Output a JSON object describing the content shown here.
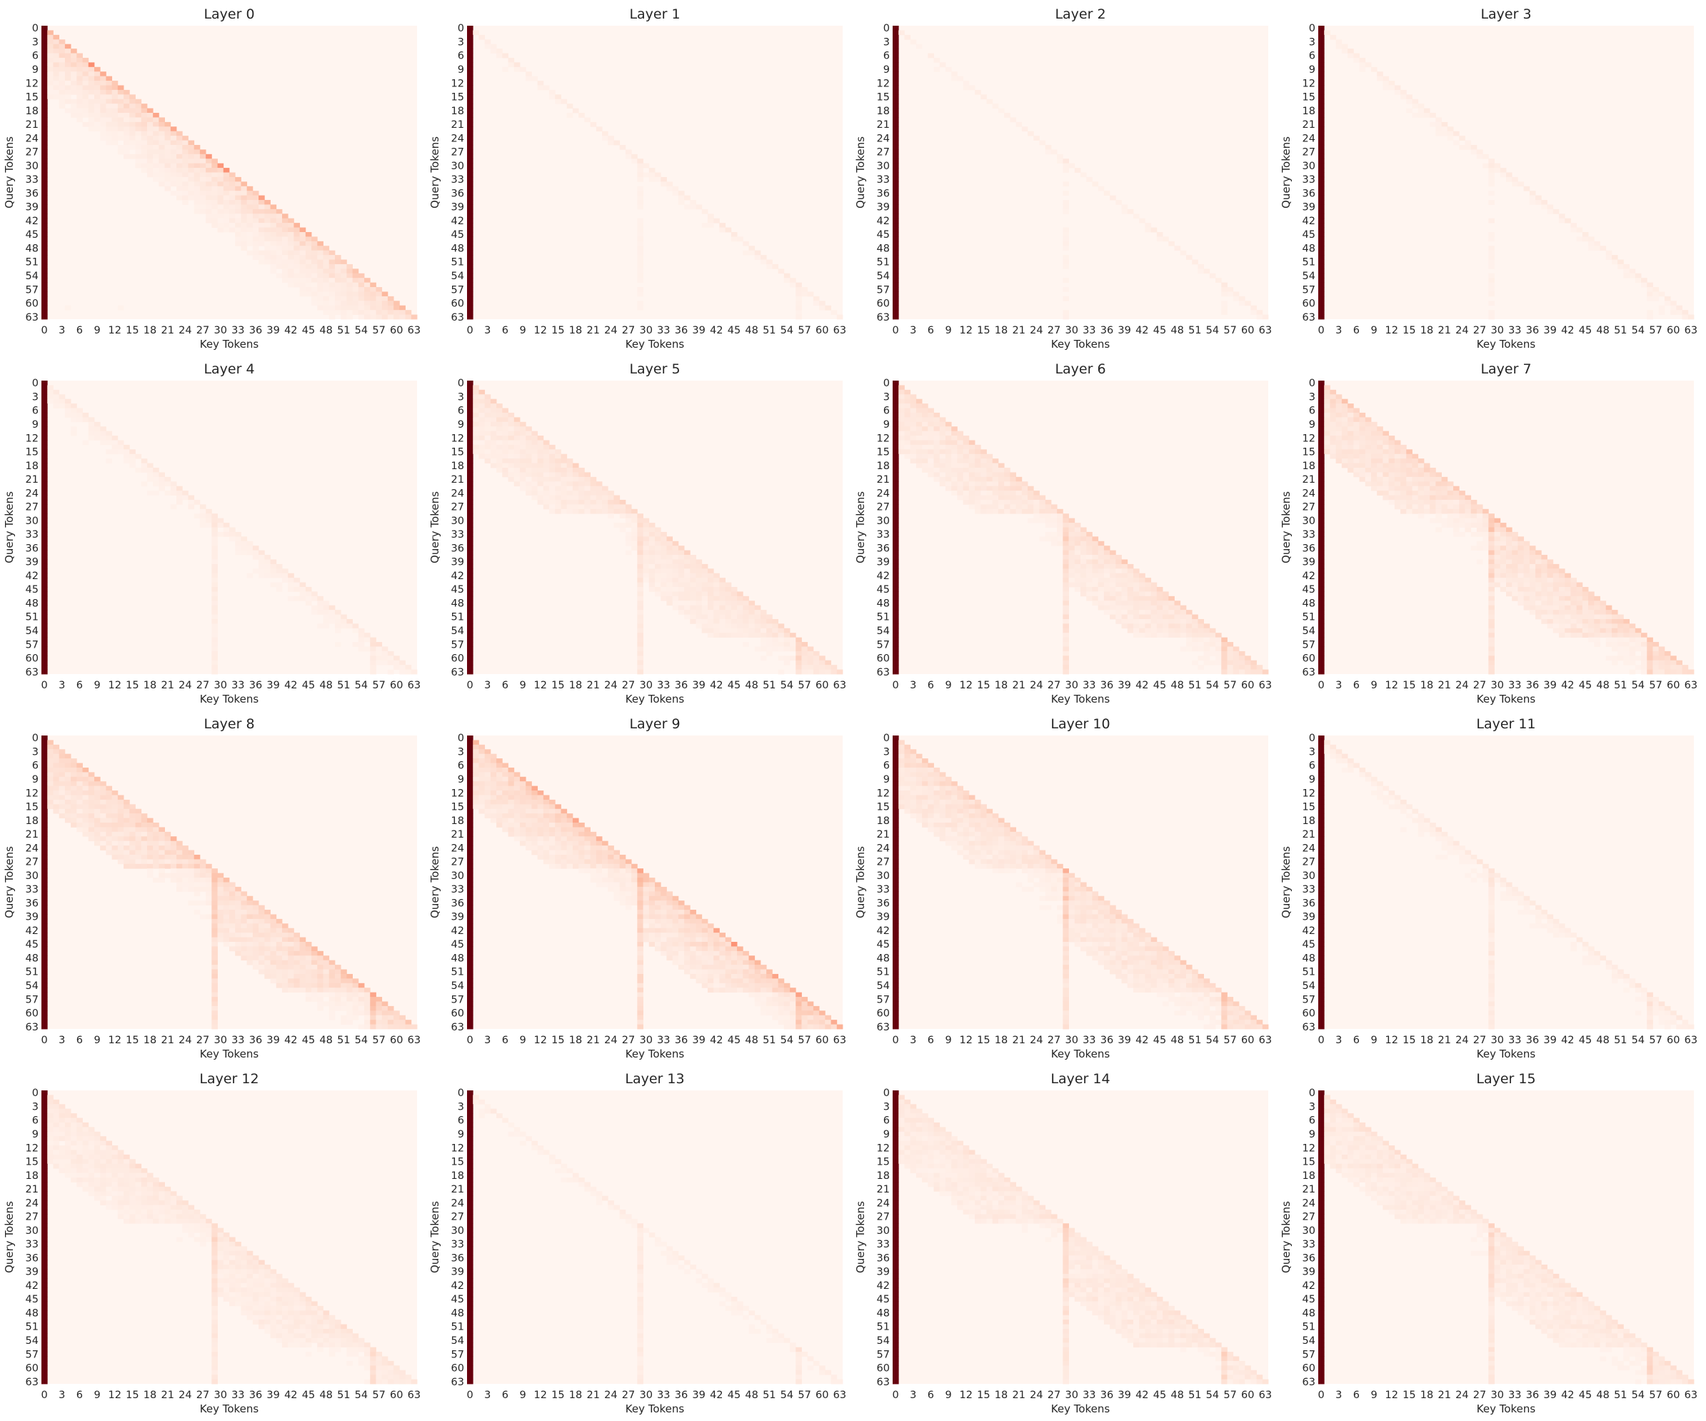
{
  "figure": {
    "grid": "4x4",
    "colormap": "Reds",
    "colors": {
      "low": "#fff5f0",
      "mid_low": "#fcbba1",
      "mid": "#fb6a4a",
      "mid_high": "#cb181d",
      "high": "#67000d"
    }
  },
  "chart_data": [
    {
      "type": "heatmap",
      "title": "Layer 0",
      "xlabel": "Key Tokens",
      "ylabel": "Query Tokens",
      "n_tokens": 64,
      "tick_step": 3,
      "xticks": [
        0,
        3,
        6,
        9,
        12,
        15,
        18,
        21,
        24,
        27,
        30,
        33,
        36,
        39,
        42,
        45,
        48,
        51,
        54,
        57,
        60,
        63
      ],
      "yticks": [
        0,
        3,
        6,
        9,
        12,
        15,
        18,
        21,
        24,
        27,
        30,
        33,
        36,
        39,
        42,
        45,
        48,
        51,
        54,
        57,
        60,
        63
      ],
      "mask": "causal",
      "attention_sink": {
        "key": 0,
        "weight": 0.55
      },
      "diagonal_weight": 0.22,
      "local_window": 14,
      "segment_starts": [],
      "segment_strength": 0,
      "blocks": [],
      "vmin": 0,
      "vmax": 1
    },
    {
      "type": "heatmap",
      "title": "Layer 1",
      "xlabel": "Key Tokens",
      "ylabel": "Query Tokens",
      "n_tokens": 64,
      "tick_step": 3,
      "xticks": [
        0,
        3,
        6,
        9,
        12,
        15,
        18,
        21,
        24,
        27,
        30,
        33,
        36,
        39,
        42,
        45,
        48,
        51,
        54,
        57,
        60,
        63
      ],
      "yticks": [
        0,
        3,
        6,
        9,
        12,
        15,
        18,
        21,
        24,
        27,
        30,
        33,
        36,
        39,
        42,
        45,
        48,
        51,
        54,
        57,
        60,
        63
      ],
      "mask": "causal",
      "attention_sink": {
        "key": 0,
        "weight": 0.85
      },
      "diagonal_weight": 0.05,
      "local_window": 5,
      "segment_starts": [
        29,
        56
      ],
      "segment_strength": 0.02,
      "blocks": [],
      "vmin": 0,
      "vmax": 1
    },
    {
      "type": "heatmap",
      "title": "Layer 2",
      "xlabel": "Key Tokens",
      "ylabel": "Query Tokens",
      "n_tokens": 64,
      "tick_step": 3,
      "xticks": [
        0,
        3,
        6,
        9,
        12,
        15,
        18,
        21,
        24,
        27,
        30,
        33,
        36,
        39,
        42,
        45,
        48,
        51,
        54,
        57,
        60,
        63
      ],
      "yticks": [
        0,
        3,
        6,
        9,
        12,
        15,
        18,
        21,
        24,
        27,
        30,
        33,
        36,
        39,
        42,
        45,
        48,
        51,
        54,
        57,
        60,
        63
      ],
      "mask": "causal",
      "attention_sink": {
        "key": 0,
        "weight": 0.87
      },
      "diagonal_weight": 0.04,
      "local_window": 5,
      "segment_starts": [
        29,
        56
      ],
      "segment_strength": 0.02,
      "blocks": [],
      "vmin": 0,
      "vmax": 1
    },
    {
      "type": "heatmap",
      "title": "Layer 3",
      "xlabel": "Key Tokens",
      "ylabel": "Query Tokens",
      "n_tokens": 64,
      "tick_step": 3,
      "xticks": [
        0,
        3,
        6,
        9,
        12,
        15,
        18,
        21,
        24,
        27,
        30,
        33,
        36,
        39,
        42,
        45,
        48,
        51,
        54,
        57,
        60,
        63
      ],
      "yticks": [
        0,
        3,
        6,
        9,
        12,
        15,
        18,
        21,
        24,
        27,
        30,
        33,
        36,
        39,
        42,
        45,
        48,
        51,
        54,
        57,
        60,
        63
      ],
      "mask": "causal",
      "attention_sink": {
        "key": 0,
        "weight": 0.84
      },
      "diagonal_weight": 0.05,
      "local_window": 6,
      "segment_starts": [
        29,
        56
      ],
      "segment_strength": 0.02,
      "blocks": [],
      "vmin": 0,
      "vmax": 1
    },
    {
      "type": "heatmap",
      "title": "Layer 4",
      "xlabel": "Key Tokens",
      "ylabel": "Query Tokens",
      "n_tokens": 64,
      "tick_step": 3,
      "xticks": [
        0,
        3,
        6,
        9,
        12,
        15,
        18,
        21,
        24,
        27,
        30,
        33,
        36,
        39,
        42,
        45,
        48,
        51,
        54,
        57,
        60,
        63
      ],
      "yticks": [
        0,
        3,
        6,
        9,
        12,
        15,
        18,
        21,
        24,
        27,
        30,
        33,
        36,
        39,
        42,
        45,
        48,
        51,
        54,
        57,
        60,
        63
      ],
      "mask": "causal",
      "attention_sink": {
        "key": 0,
        "weight": 0.8
      },
      "diagonal_weight": 0.07,
      "local_window": 8,
      "segment_starts": [
        29,
        56
      ],
      "segment_strength": 0.04,
      "blocks": [],
      "vmin": 0,
      "vmax": 1
    },
    {
      "type": "heatmap",
      "title": "Layer 5",
      "xlabel": "Key Tokens",
      "ylabel": "Query Tokens",
      "n_tokens": 64,
      "tick_step": 3,
      "xticks": [
        0,
        3,
        6,
        9,
        12,
        15,
        18,
        21,
        24,
        27,
        30,
        33,
        36,
        39,
        42,
        45,
        48,
        51,
        54,
        57,
        60,
        63
      ],
      "yticks": [
        0,
        3,
        6,
        9,
        12,
        15,
        18,
        21,
        24,
        27,
        30,
        33,
        36,
        39,
        42,
        45,
        48,
        51,
        54,
        57,
        60,
        63
      ],
      "mask": "causal",
      "attention_sink": {
        "key": 0,
        "weight": 0.7
      },
      "diagonal_weight": 0.1,
      "local_window": 10,
      "segment_starts": [
        29,
        56
      ],
      "segment_strength": 0.06,
      "blocks": [
        {
          "start": 0,
          "end": 29,
          "strength": 0.08
        },
        {
          "start": 29,
          "end": 56,
          "strength": 0.08
        },
        {
          "start": 56,
          "end": 64,
          "strength": 0.08
        }
      ],
      "vmin": 0,
      "vmax": 1
    },
    {
      "type": "heatmap",
      "title": "Layer 6",
      "xlabel": "Key Tokens",
      "ylabel": "Query Tokens",
      "n_tokens": 64,
      "tick_step": 3,
      "xticks": [
        0,
        3,
        6,
        9,
        12,
        15,
        18,
        21,
        24,
        27,
        30,
        33,
        36,
        39,
        42,
        45,
        48,
        51,
        54,
        57,
        60,
        63
      ],
      "yticks": [
        0,
        3,
        6,
        9,
        12,
        15,
        18,
        21,
        24,
        27,
        30,
        33,
        36,
        39,
        42,
        45,
        48,
        51,
        54,
        57,
        60,
        63
      ],
      "mask": "causal",
      "attention_sink": {
        "key": 0,
        "weight": 0.68
      },
      "diagonal_weight": 0.1,
      "local_window": 10,
      "segment_starts": [
        29,
        56
      ],
      "segment_strength": 0.07,
      "blocks": [
        {
          "start": 0,
          "end": 29,
          "strength": 0.09
        },
        {
          "start": 29,
          "end": 56,
          "strength": 0.09
        },
        {
          "start": 56,
          "end": 64,
          "strength": 0.09
        }
      ],
      "vmin": 0,
      "vmax": 1
    },
    {
      "type": "heatmap",
      "title": "Layer 7",
      "xlabel": "Key Tokens",
      "ylabel": "Query Tokens",
      "n_tokens": 64,
      "tick_step": 3,
      "xticks": [
        0,
        3,
        6,
        9,
        12,
        15,
        18,
        21,
        24,
        27,
        30,
        33,
        36,
        39,
        42,
        45,
        48,
        51,
        54,
        57,
        60,
        63
      ],
      "yticks": [
        0,
        3,
        6,
        9,
        12,
        15,
        18,
        21,
        24,
        27,
        30,
        33,
        36,
        39,
        42,
        45,
        48,
        51,
        54,
        57,
        60,
        63
      ],
      "mask": "causal",
      "attention_sink": {
        "key": 0,
        "weight": 0.6
      },
      "diagonal_weight": 0.1,
      "local_window": 12,
      "segment_starts": [
        29,
        56
      ],
      "segment_strength": 0.07,
      "blocks": [
        {
          "start": 0,
          "end": 29,
          "strength": 0.1
        },
        {
          "start": 29,
          "end": 56,
          "strength": 0.1
        },
        {
          "start": 56,
          "end": 64,
          "strength": 0.1
        }
      ],
      "vmin": 0,
      "vmax": 1
    },
    {
      "type": "heatmap",
      "title": "Layer 8",
      "xlabel": "Key Tokens",
      "ylabel": "Query Tokens",
      "n_tokens": 64,
      "tick_step": 3,
      "xticks": [
        0,
        3,
        6,
        9,
        12,
        15,
        18,
        21,
        24,
        27,
        30,
        33,
        36,
        39,
        42,
        45,
        48,
        51,
        54,
        57,
        60,
        63
      ],
      "yticks": [
        0,
        3,
        6,
        9,
        12,
        15,
        18,
        21,
        24,
        27,
        30,
        33,
        36,
        39,
        42,
        45,
        48,
        51,
        54,
        57,
        60,
        63
      ],
      "mask": "causal",
      "attention_sink": {
        "key": 0,
        "weight": 0.62
      },
      "diagonal_weight": 0.14,
      "local_window": 12,
      "segment_starts": [
        29,
        56
      ],
      "segment_strength": 0.1,
      "blocks": [
        {
          "start": 0,
          "end": 29,
          "strength": 0.12
        },
        {
          "start": 29,
          "end": 56,
          "strength": 0.12
        },
        {
          "start": 56,
          "end": 64,
          "strength": 0.12
        }
      ],
      "vmin": 0,
      "vmax": 1
    },
    {
      "type": "heatmap",
      "title": "Layer 9",
      "xlabel": "Key Tokens",
      "ylabel": "Query Tokens",
      "n_tokens": 64,
      "tick_step": 3,
      "xticks": [
        0,
        3,
        6,
        9,
        12,
        15,
        18,
        21,
        24,
        27,
        30,
        33,
        36,
        39,
        42,
        45,
        48,
        51,
        54,
        57,
        60,
        63
      ],
      "yticks": [
        0,
        3,
        6,
        9,
        12,
        15,
        18,
        21,
        24,
        27,
        30,
        33,
        36,
        39,
        42,
        45,
        48,
        51,
        54,
        57,
        60,
        63
      ],
      "mask": "causal",
      "attention_sink": {
        "key": 0,
        "weight": 0.6
      },
      "diagonal_weight": 0.2,
      "local_window": 10,
      "segment_starts": [
        29,
        56
      ],
      "segment_strength": 0.1,
      "blocks": [
        {
          "start": 0,
          "end": 29,
          "strength": 0.1
        },
        {
          "start": 29,
          "end": 56,
          "strength": 0.1
        },
        {
          "start": 56,
          "end": 64,
          "strength": 0.1
        }
      ],
      "vmin": 0,
      "vmax": 1
    },
    {
      "type": "heatmap",
      "title": "Layer 10",
      "xlabel": "Key Tokens",
      "ylabel": "Query Tokens",
      "n_tokens": 64,
      "tick_step": 3,
      "xticks": [
        0,
        3,
        6,
        9,
        12,
        15,
        18,
        21,
        24,
        27,
        30,
        33,
        36,
        39,
        42,
        45,
        48,
        51,
        54,
        57,
        60,
        63
      ],
      "yticks": [
        0,
        3,
        6,
        9,
        12,
        15,
        18,
        21,
        24,
        27,
        30,
        33,
        36,
        39,
        42,
        45,
        48,
        51,
        54,
        57,
        60,
        63
      ],
      "mask": "causal",
      "attention_sink": {
        "key": 0,
        "weight": 0.66
      },
      "diagonal_weight": 0.11,
      "local_window": 12,
      "segment_starts": [
        29,
        56
      ],
      "segment_strength": 0.09,
      "blocks": [
        {
          "start": 0,
          "end": 29,
          "strength": 0.09
        },
        {
          "start": 29,
          "end": 56,
          "strength": 0.09
        },
        {
          "start": 56,
          "end": 64,
          "strength": 0.09
        }
      ],
      "vmin": 0,
      "vmax": 1
    },
    {
      "type": "heatmap",
      "title": "Layer 11",
      "xlabel": "Key Tokens",
      "ylabel": "Query Tokens",
      "n_tokens": 64,
      "tick_step": 3,
      "xticks": [
        0,
        3,
        6,
        9,
        12,
        15,
        18,
        21,
        24,
        27,
        30,
        33,
        36,
        39,
        42,
        45,
        48,
        51,
        54,
        57,
        60,
        63
      ],
      "yticks": [
        0,
        3,
        6,
        9,
        12,
        15,
        18,
        21,
        24,
        27,
        30,
        33,
        36,
        39,
        42,
        45,
        48,
        51,
        54,
        57,
        60,
        63
      ],
      "mask": "causal",
      "attention_sink": {
        "key": 0,
        "weight": 0.78
      },
      "diagonal_weight": 0.06,
      "local_window": 8,
      "segment_starts": [
        29,
        56
      ],
      "segment_strength": 0.05,
      "blocks": [],
      "vmin": 0,
      "vmax": 1
    },
    {
      "type": "heatmap",
      "title": "Layer 12",
      "xlabel": "Key Tokens",
      "ylabel": "Query Tokens",
      "n_tokens": 64,
      "tick_step": 3,
      "xticks": [
        0,
        3,
        6,
        9,
        12,
        15,
        18,
        21,
        24,
        27,
        30,
        33,
        36,
        39,
        42,
        45,
        48,
        51,
        54,
        57,
        60,
        63
      ],
      "yticks": [
        0,
        3,
        6,
        9,
        12,
        15,
        18,
        21,
        24,
        27,
        30,
        33,
        36,
        39,
        42,
        45,
        48,
        51,
        54,
        57,
        60,
        63
      ],
      "mask": "causal",
      "attention_sink": {
        "key": 0,
        "weight": 0.72
      },
      "diagonal_weight": 0.06,
      "local_window": 12,
      "segment_starts": [
        29,
        56
      ],
      "segment_strength": 0.07,
      "blocks": [
        {
          "start": 0,
          "end": 29,
          "strength": 0.07
        },
        {
          "start": 29,
          "end": 56,
          "strength": 0.07
        },
        {
          "start": 56,
          "end": 64,
          "strength": 0.07
        }
      ],
      "vmin": 0,
      "vmax": 1
    },
    {
      "type": "heatmap",
      "title": "Layer 13",
      "xlabel": "Key Tokens",
      "ylabel": "Query Tokens",
      "n_tokens": 64,
      "tick_step": 3,
      "xticks": [
        0,
        3,
        6,
        9,
        12,
        15,
        18,
        21,
        24,
        27,
        30,
        33,
        36,
        39,
        42,
        45,
        48,
        51,
        54,
        57,
        60,
        63
      ],
      "yticks": [
        0,
        3,
        6,
        9,
        12,
        15,
        18,
        21,
        24,
        27,
        30,
        33,
        36,
        39,
        42,
        45,
        48,
        51,
        54,
        57,
        60,
        63
      ],
      "mask": "causal",
      "attention_sink": {
        "key": 0,
        "weight": 0.84
      },
      "diagonal_weight": 0.04,
      "local_window": 8,
      "segment_starts": [
        29,
        56
      ],
      "segment_strength": 0.05,
      "blocks": [],
      "vmin": 0,
      "vmax": 1
    },
    {
      "type": "heatmap",
      "title": "Layer 14",
      "xlabel": "Key Tokens",
      "ylabel": "Query Tokens",
      "n_tokens": 64,
      "tick_step": 3,
      "xticks": [
        0,
        3,
        6,
        9,
        12,
        15,
        18,
        21,
        24,
        27,
        30,
        33,
        36,
        39,
        42,
        45,
        48,
        51,
        54,
        57,
        60,
        63
      ],
      "yticks": [
        0,
        3,
        6,
        9,
        12,
        15,
        18,
        21,
        24,
        27,
        30,
        33,
        36,
        39,
        42,
        45,
        48,
        51,
        54,
        57,
        60,
        63
      ],
      "mask": "causal",
      "attention_sink": {
        "key": 0,
        "weight": 0.76
      },
      "diagonal_weight": 0.05,
      "local_window": 12,
      "segment_starts": [
        29,
        56
      ],
      "segment_strength": 0.08,
      "blocks": [
        {
          "start": 0,
          "end": 29,
          "strength": 0.09
        },
        {
          "start": 29,
          "end": 56,
          "strength": 0.09
        },
        {
          "start": 56,
          "end": 64,
          "strength": 0.09
        }
      ],
      "vmin": 0,
      "vmax": 1
    },
    {
      "type": "heatmap",
      "title": "Layer 15",
      "xlabel": "Key Tokens",
      "ylabel": "Query Tokens",
      "n_tokens": 64,
      "tick_step": 3,
      "xticks": [
        0,
        3,
        6,
        9,
        12,
        15,
        18,
        21,
        24,
        27,
        30,
        33,
        36,
        39,
        42,
        45,
        48,
        51,
        54,
        57,
        60,
        63
      ],
      "yticks": [
        0,
        3,
        6,
        9,
        12,
        15,
        18,
        21,
        24,
        27,
        30,
        33,
        36,
        39,
        42,
        45,
        48,
        51,
        54,
        57,
        60,
        63
      ],
      "mask": "causal",
      "attention_sink": {
        "key": 0,
        "weight": 0.7
      },
      "diagonal_weight": 0.06,
      "local_window": 12,
      "segment_starts": [
        29,
        56
      ],
      "segment_strength": 0.07,
      "blocks": [
        {
          "start": 0,
          "end": 29,
          "strength": 0.08
        },
        {
          "start": 29,
          "end": 56,
          "strength": 0.08
        },
        {
          "start": 56,
          "end": 64,
          "strength": 0.08
        }
      ],
      "vmin": 0,
      "vmax": 1
    }
  ]
}
